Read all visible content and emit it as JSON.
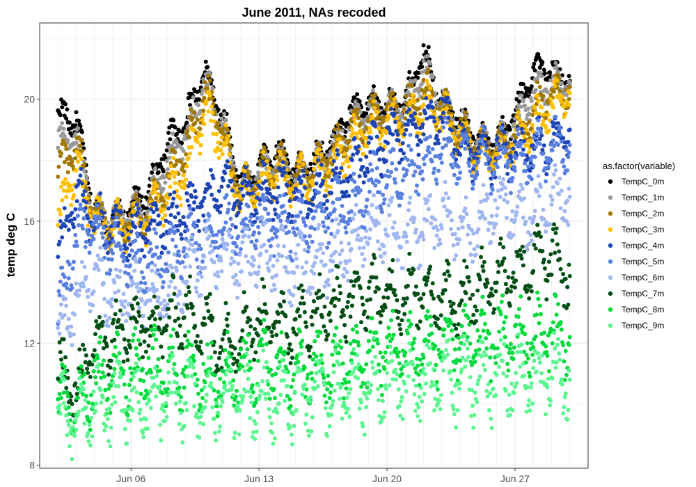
{
  "chart_data": {
    "type": "scatter",
    "title": "June 2011, NAs recoded",
    "xlabel": "",
    "ylabel": "temp deg C",
    "x_is_date": true,
    "xlim": [
      "2011-06-01",
      "2011-07-01"
    ],
    "ylim": [
      7.9,
      22.5
    ],
    "x_ticks": [
      {
        "date": "2011-06-06",
        "label": "Jun 06"
      },
      {
        "date": "2011-06-13",
        "label": "Jun 13"
      },
      {
        "date": "2011-06-20",
        "label": "Jun 20"
      },
      {
        "date": "2011-06-27",
        "label": "Jun 27"
      }
    ],
    "y_ticks": [
      8,
      12,
      16,
      20
    ],
    "grid": true,
    "legend": {
      "title": "as.factor(variable)",
      "position": "right"
    },
    "series": [
      {
        "name": "TempC_0m",
        "color": "#000000",
        "x": [
          "2011-06-02",
          "2011-06-03",
          "2011-06-04",
          "2011-06-05",
          "2011-06-06",
          "2011-06-07",
          "2011-06-08",
          "2011-06-09",
          "2011-06-10",
          "2011-06-11",
          "2011-06-12",
          "2011-06-13",
          "2011-06-14",
          "2011-06-15",
          "2011-06-16",
          "2011-06-17",
          "2011-06-18",
          "2011-06-19",
          "2011-06-20",
          "2011-06-21",
          "2011-06-22",
          "2011-06-23",
          "2011-06-24",
          "2011-06-25",
          "2011-06-26",
          "2011-06-27",
          "2011-06-28",
          "2011-06-29",
          "2011-06-30"
        ],
        "values": [
          19.5,
          19.3,
          16.3,
          16.0,
          16.4,
          17.0,
          18.6,
          19.3,
          20.9,
          19.4,
          17.2,
          17.8,
          18.3,
          17.6,
          18.0,
          18.6,
          19.6,
          19.8,
          19.8,
          19.9,
          21.5,
          20.0,
          19.3,
          18.6,
          18.6,
          19.5,
          21.0,
          20.9,
          20.6
        ]
      },
      {
        "name": "TempC_1m",
        "color": "#999999",
        "x": [
          "2011-06-02",
          "2011-06-03",
          "2011-06-04",
          "2011-06-05",
          "2011-06-06",
          "2011-06-07",
          "2011-06-08",
          "2011-06-09",
          "2011-06-10",
          "2011-06-11",
          "2011-06-12",
          "2011-06-13",
          "2011-06-14",
          "2011-06-15",
          "2011-06-16",
          "2011-06-17",
          "2011-06-18",
          "2011-06-19",
          "2011-06-20",
          "2011-06-21",
          "2011-06-22",
          "2011-06-23",
          "2011-06-24",
          "2011-06-25",
          "2011-06-26",
          "2011-06-27",
          "2011-06-28",
          "2011-06-29",
          "2011-06-30"
        ],
        "values": [
          18.6,
          18.8,
          16.2,
          16.0,
          16.2,
          16.6,
          18.0,
          18.8,
          20.6,
          19.2,
          17.0,
          17.6,
          18.0,
          17.5,
          17.8,
          18.4,
          19.2,
          19.6,
          19.6,
          19.7,
          21.0,
          19.9,
          19.1,
          18.5,
          18.5,
          19.1,
          20.2,
          20.5,
          20.5
        ]
      },
      {
        "name": "TempC_2m",
        "color": "#a07800",
        "x": [
          "2011-06-02",
          "2011-06-03",
          "2011-06-04",
          "2011-06-05",
          "2011-06-06",
          "2011-06-07",
          "2011-06-08",
          "2011-06-09",
          "2011-06-10",
          "2011-06-11",
          "2011-06-12",
          "2011-06-13",
          "2011-06-14",
          "2011-06-15",
          "2011-06-16",
          "2011-06-17",
          "2011-06-18",
          "2011-06-19",
          "2011-06-20",
          "2011-06-21",
          "2011-06-22",
          "2011-06-23",
          "2011-06-24",
          "2011-06-25",
          "2011-06-26",
          "2011-06-27",
          "2011-06-28",
          "2011-06-29",
          "2011-06-30"
        ],
        "values": [
          17.6,
          18.5,
          16.1,
          15.9,
          16.0,
          16.3,
          17.4,
          18.3,
          20.2,
          19.0,
          16.9,
          17.5,
          17.9,
          17.4,
          17.7,
          18.2,
          18.9,
          19.4,
          19.5,
          19.6,
          20.3,
          19.7,
          19.0,
          18.4,
          18.4,
          18.8,
          19.6,
          20.2,
          20.4
        ]
      },
      {
        "name": "TempC_3m",
        "color": "#ffbf00",
        "x": [
          "2011-06-02",
          "2011-06-03",
          "2011-06-04",
          "2011-06-05",
          "2011-06-06",
          "2011-06-07",
          "2011-06-08",
          "2011-06-09",
          "2011-06-10",
          "2011-06-11",
          "2011-06-12",
          "2011-06-13",
          "2011-06-14",
          "2011-06-15",
          "2011-06-16",
          "2011-06-17",
          "2011-06-18",
          "2011-06-19",
          "2011-06-20",
          "2011-06-21",
          "2011-06-22",
          "2011-06-23",
          "2011-06-24",
          "2011-06-25",
          "2011-06-26",
          "2011-06-27",
          "2011-06-28",
          "2011-06-29",
          "2011-06-30"
        ],
        "values": [
          16.0,
          17.8,
          16.0,
          15.8,
          15.9,
          16.1,
          17.0,
          17.6,
          19.6,
          18.6,
          16.8,
          17.3,
          17.6,
          17.2,
          17.5,
          17.8,
          18.5,
          19.0,
          19.3,
          19.4,
          19.8,
          19.5,
          18.8,
          18.3,
          18.3,
          18.6,
          19.2,
          19.8,
          20.2
        ]
      },
      {
        "name": "TempC_4m",
        "color": "#1f45b5",
        "x": [
          "2011-06-02",
          "2011-06-03",
          "2011-06-04",
          "2011-06-05",
          "2011-06-06",
          "2011-06-07",
          "2011-06-08",
          "2011-06-09",
          "2011-06-10",
          "2011-06-11",
          "2011-06-12",
          "2011-06-13",
          "2011-06-14",
          "2011-06-15",
          "2011-06-16",
          "2011-06-17",
          "2011-06-18",
          "2011-06-19",
          "2011-06-20",
          "2011-06-21",
          "2011-06-22",
          "2011-06-23",
          "2011-06-24",
          "2011-06-25",
          "2011-06-26",
          "2011-06-27",
          "2011-06-28",
          "2011-06-29",
          "2011-06-30"
        ],
        "values": [
          14.8,
          17.0,
          16.0,
          15.7,
          15.6,
          15.8,
          16.0,
          16.3,
          16.8,
          17.2,
          16.7,
          17.0,
          17.0,
          16.8,
          17.0,
          17.2,
          17.6,
          18.2,
          18.6,
          19.0,
          19.2,
          19.6,
          18.4,
          18.2,
          18.2,
          18.3,
          18.4,
          18.6,
          19.0
        ]
      },
      {
        "name": "TempC_5m",
        "color": "#5a80e0",
        "x": [
          "2011-06-02",
          "2011-06-03",
          "2011-06-04",
          "2011-06-05",
          "2011-06-06",
          "2011-06-07",
          "2011-06-08",
          "2011-06-09",
          "2011-06-10",
          "2011-06-11",
          "2011-06-12",
          "2011-06-13",
          "2011-06-14",
          "2011-06-15",
          "2011-06-16",
          "2011-06-17",
          "2011-06-18",
          "2011-06-19",
          "2011-06-20",
          "2011-06-21",
          "2011-06-22",
          "2011-06-23",
          "2011-06-24",
          "2011-06-25",
          "2011-06-26",
          "2011-06-27",
          "2011-06-28",
          "2011-06-29",
          "2011-06-30"
        ],
        "values": [
          13.0,
          15.5,
          15.8,
          15.2,
          14.6,
          14.6,
          14.8,
          15.2,
          15.5,
          15.8,
          15.6,
          16.0,
          15.9,
          15.8,
          16.0,
          16.3,
          16.5,
          17.0,
          17.4,
          17.6,
          18.0,
          18.4,
          18.0,
          18.0,
          18.0,
          18.1,
          18.2,
          18.3,
          18.5
        ]
      },
      {
        "name": "TempC_6m",
        "color": "#9fb6f0",
        "x": [
          "2011-06-02",
          "2011-06-03",
          "2011-06-04",
          "2011-06-05",
          "2011-06-06",
          "2011-06-07",
          "2011-06-08",
          "2011-06-09",
          "2011-06-10",
          "2011-06-11",
          "2011-06-12",
          "2011-06-13",
          "2011-06-14",
          "2011-06-15",
          "2011-06-16",
          "2011-06-17",
          "2011-06-18",
          "2011-06-19",
          "2011-06-20",
          "2011-06-21",
          "2011-06-22",
          "2011-06-23",
          "2011-06-24",
          "2011-06-25",
          "2011-06-26",
          "2011-06-27",
          "2011-06-28",
          "2011-06-29",
          "2011-06-30"
        ],
        "values": [
          12.0,
          13.4,
          14.2,
          13.4,
          13.6,
          13.4,
          13.6,
          14.2,
          14.8,
          15.0,
          14.6,
          15.0,
          14.8,
          14.4,
          14.6,
          14.8,
          15.2,
          15.8,
          15.6,
          15.4,
          15.8,
          16.2,
          15.6,
          15.8,
          16.6,
          16.4,
          16.2,
          16.6,
          16.8
        ]
      },
      {
        "name": "TempC_7m",
        "color": "#004d14",
        "x": [
          "2011-06-02",
          "2011-06-03",
          "2011-06-04",
          "2011-06-05",
          "2011-06-06",
          "2011-06-07",
          "2011-06-08",
          "2011-06-09",
          "2011-06-10",
          "2011-06-11",
          "2011-06-12",
          "2011-06-13",
          "2011-06-14",
          "2011-06-15",
          "2011-06-16",
          "2011-06-17",
          "2011-06-18",
          "2011-06-19",
          "2011-06-20",
          "2011-06-21",
          "2011-06-22",
          "2011-06-23",
          "2011-06-24",
          "2011-06-25",
          "2011-06-26",
          "2011-06-27",
          "2011-06-28",
          "2011-06-29",
          "2011-06-30"
        ],
        "values": [
          11.2,
          10.4,
          12.0,
          12.2,
          12.4,
          12.6,
          12.8,
          13.0,
          12.6,
          12.0,
          12.4,
          12.8,
          12.8,
          12.6,
          13.0,
          13.2,
          13.4,
          13.6,
          13.6,
          13.6,
          13.8,
          13.6,
          13.4,
          13.8,
          14.2,
          14.4,
          14.6,
          14.8,
          14.2
        ]
      },
      {
        "name": "TempC_8m",
        "color": "#00d93b",
        "x": [
          "2011-06-02",
          "2011-06-03",
          "2011-06-04",
          "2011-06-05",
          "2011-06-06",
          "2011-06-07",
          "2011-06-08",
          "2011-06-09",
          "2011-06-10",
          "2011-06-11",
          "2011-06-12",
          "2011-06-13",
          "2011-06-14",
          "2011-06-15",
          "2011-06-16",
          "2011-06-17",
          "2011-06-18",
          "2011-06-19",
          "2011-06-20",
          "2011-06-21",
          "2011-06-22",
          "2011-06-23",
          "2011-06-24",
          "2011-06-25",
          "2011-06-26",
          "2011-06-27",
          "2011-06-28",
          "2011-06-29",
          "2011-06-30"
        ],
        "values": [
          10.0,
          10.0,
          10.8,
          11.0,
          11.0,
          11.2,
          11.0,
          11.2,
          11.0,
          10.8,
          11.2,
          11.4,
          11.2,
          11.0,
          11.2,
          11.2,
          11.4,
          11.6,
          11.8,
          11.8,
          11.8,
          12.0,
          12.0,
          12.0,
          12.2,
          12.2,
          12.2,
          12.4,
          12.2
        ]
      },
      {
        "name": "TempC_9m",
        "color": "#5cf590",
        "x": [
          "2011-06-02",
          "2011-06-03",
          "2011-06-04",
          "2011-06-05",
          "2011-06-06",
          "2011-06-07",
          "2011-06-08",
          "2011-06-09",
          "2011-06-10",
          "2011-06-11",
          "2011-06-12",
          "2011-06-13",
          "2011-06-14",
          "2011-06-15",
          "2011-06-16",
          "2011-06-17",
          "2011-06-18",
          "2011-06-19",
          "2011-06-20",
          "2011-06-21",
          "2011-06-22",
          "2011-06-23",
          "2011-06-24",
          "2011-06-25",
          "2011-06-26",
          "2011-06-27",
          "2011-06-28",
          "2011-06-29",
          "2011-06-30"
        ],
        "values": [
          9.5,
          9.4,
          10.0,
          10.0,
          10.0,
          10.0,
          10.2,
          10.2,
          10.0,
          10.2,
          10.2,
          10.2,
          10.2,
          10.2,
          10.4,
          10.4,
          10.4,
          10.6,
          10.6,
          10.6,
          10.6,
          10.8,
          10.8,
          10.8,
          10.8,
          10.8,
          10.8,
          11.0,
          10.8
        ]
      }
    ]
  }
}
